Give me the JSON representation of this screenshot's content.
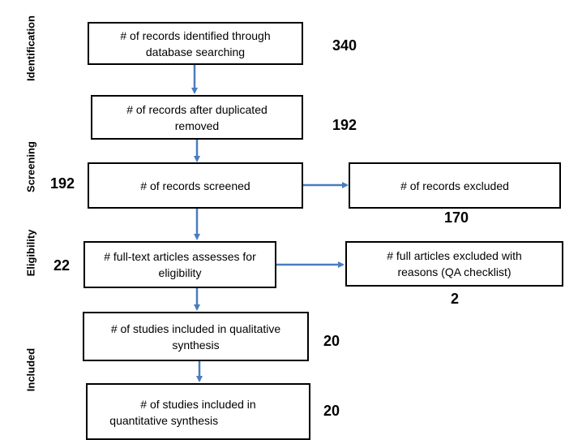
{
  "phases": {
    "identification": "Identification",
    "screening": "Screening",
    "eligibility": "Eligibility",
    "included": "Included"
  },
  "boxes": {
    "identified": {
      "line1": "# of records identified through",
      "line2": "database searching"
    },
    "after_duplicates": {
      "line1": "# of records after duplicated",
      "line2": "removed"
    },
    "screened": {
      "line1": "# of records screened"
    },
    "excluded": {
      "line1": "# of records excluded"
    },
    "fulltext": {
      "line1": "# full-text articles assesses for",
      "line2": "eligibility"
    },
    "fulltext_excluded": {
      "line1": "# full articles excluded with",
      "line2": "reasons (QA checklist)"
    },
    "qualitative": {
      "line1": "# of studies included in qualitative",
      "line2": "synthesis"
    },
    "quantitative": {
      "line1": "# of studies included in",
      "line2": "quantitative synthesis"
    }
  },
  "counts": {
    "identified": "340",
    "after_duplicates": "192",
    "screened": "192",
    "excluded": "170",
    "fulltext": "22",
    "fulltext_excluded": "2",
    "qualitative": "20",
    "quantitative": "20"
  },
  "colors": {
    "arrow": "#4a7cc0",
    "box_border": "#000000"
  }
}
